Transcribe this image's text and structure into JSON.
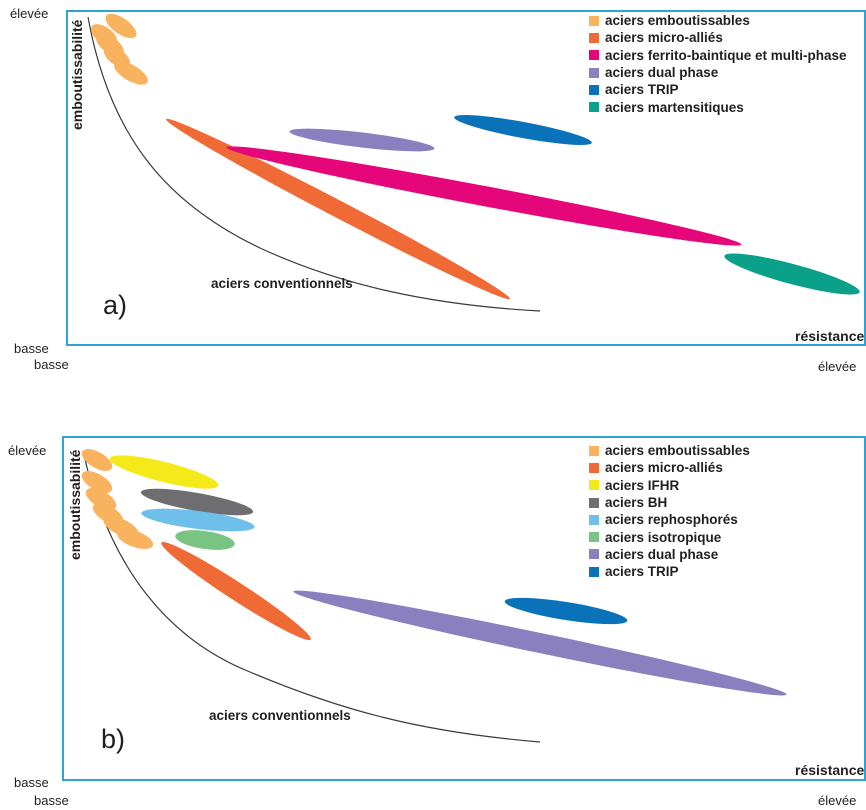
{
  "panel_a": {
    "letter": "a)",
    "y_axis_label": "emboutissabilité",
    "y_high": "élevée",
    "y_low": "basse",
    "x_low": "basse",
    "x_high": "élevée",
    "x_axis_label": "résistance",
    "curve_label": "aciers conventionnels",
    "legend": [
      {
        "label": "aciers emboutissables",
        "color": "#f9b25d"
      },
      {
        "label": "aciers micro-alliés",
        "color": "#f06a35"
      },
      {
        "label": "aciers ferrito-baintique et multi-phase",
        "color": "#e5067a"
      },
      {
        "label": "aciers dual phase",
        "color": "#8a80c0"
      },
      {
        "label": "aciers TRIP",
        "color": "#0a72b9"
      },
      {
        "label": "aciers martensitiques",
        "color": "#0ba08a"
      }
    ]
  },
  "panel_b": {
    "letter": "b)",
    "y_axis_label": "emboutissabilité",
    "y_high": "élevée",
    "y_low": "basse",
    "x_low": "basse",
    "x_high": "élevée",
    "x_axis_label": "résistance",
    "curve_label": "aciers conventionnels",
    "legend": [
      {
        "label": "aciers emboutissables",
        "color": "#f9b25d"
      },
      {
        "label": "aciers micro-alliés",
        "color": "#f06a35"
      },
      {
        "label": "aciers IFHR",
        "color": "#f4ea1a"
      },
      {
        "label": "aciers BH",
        "color": "#6e6e70"
      },
      {
        "label": "aciers rephosphorés",
        "color": "#6ec0ea"
      },
      {
        "label": "aciers isotropique",
        "color": "#79c383"
      },
      {
        "label": "aciers dual phase",
        "color": "#8a80c0"
      },
      {
        "label": "aciers TRIP",
        "color": "#0a72b9"
      }
    ]
  }
}
